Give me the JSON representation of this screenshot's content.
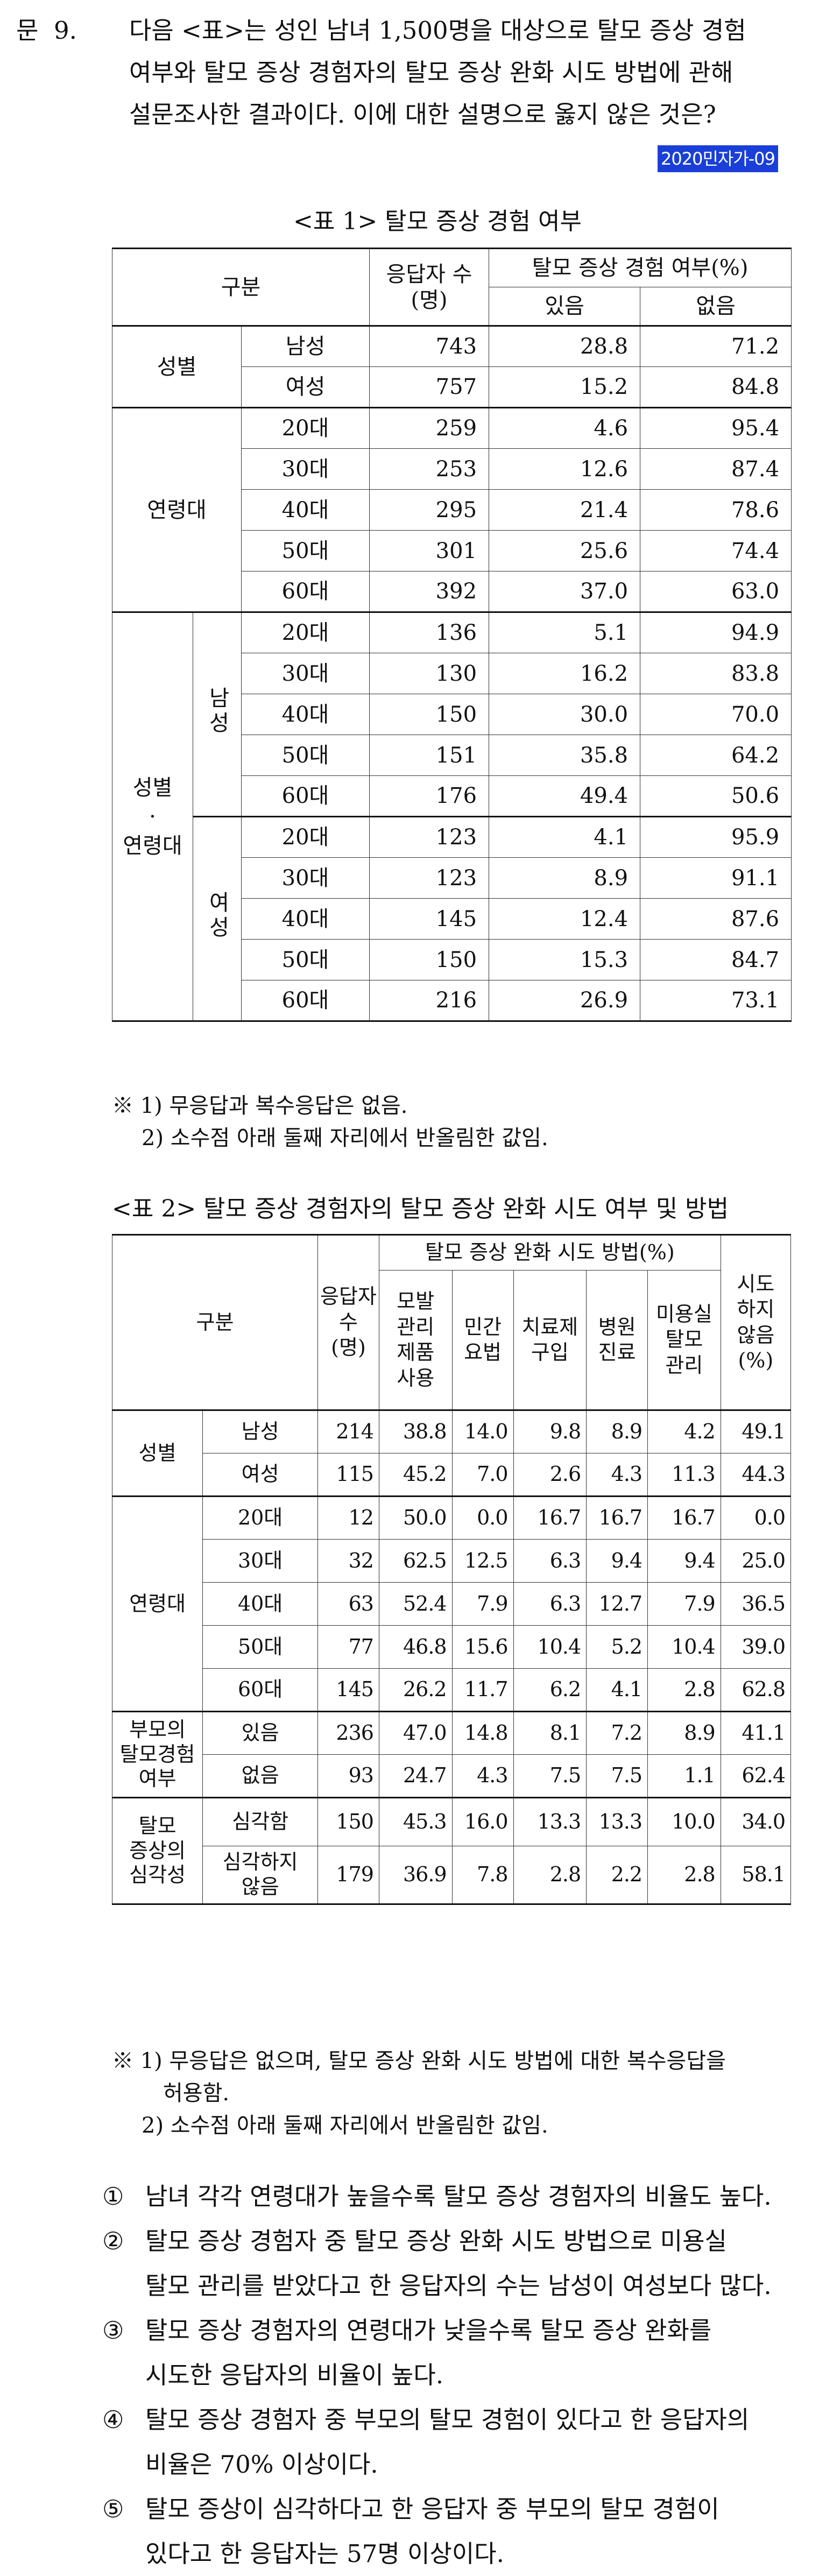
{
  "question": {
    "number": "문  9.",
    "lines": [
      "다음 <표>는 성인 남녀 1,500명을 대상으로 탈모 증상 경험",
      "여부와 탈모 증상 경험자의 탈모 증상 완화 시도 방법에 관해",
      "설문조사한 결과이다. 이에 대한 설명으로 옳지 않은 것은?"
    ],
    "source_tag": "2020민자가-09"
  },
  "table1": {
    "caption": "<표 1> 탈모 증상 경험 여부",
    "header": {
      "category": "구분",
      "respondents": "응답자 수\n(명)",
      "experience": "탈모 증상 경험 여부(%)",
      "yes": "있음",
      "no": "없음"
    },
    "groups": {
      "gender": "성별",
      "age": "연령대",
      "gender_age": "성별\n·\n연령대",
      "male": "남성",
      "female": "여성"
    },
    "rows_gender": [
      {
        "label": "남성",
        "n": "743",
        "yes": "28.8",
        "no": "71.2"
      },
      {
        "label": "여성",
        "n": "757",
        "yes": "15.2",
        "no": "84.8"
      }
    ],
    "rows_age": [
      {
        "label": "20대",
        "n": "259",
        "yes": "4.6",
        "no": "95.4"
      },
      {
        "label": "30대",
        "n": "253",
        "yes": "12.6",
        "no": "87.4"
      },
      {
        "label": "40대",
        "n": "295",
        "yes": "21.4",
        "no": "78.6"
      },
      {
        "label": "50대",
        "n": "301",
        "yes": "25.6",
        "no": "74.4"
      },
      {
        "label": "60대",
        "n": "392",
        "yes": "37.0",
        "no": "63.0"
      }
    ],
    "rows_male": [
      {
        "label": "20대",
        "n": "136",
        "yes": "5.1",
        "no": "94.9"
      },
      {
        "label": "30대",
        "n": "130",
        "yes": "16.2",
        "no": "83.8"
      },
      {
        "label": "40대",
        "n": "150",
        "yes": "30.0",
        "no": "70.0"
      },
      {
        "label": "50대",
        "n": "151",
        "yes": "35.8",
        "no": "64.2"
      },
      {
        "label": "60대",
        "n": "176",
        "yes": "49.4",
        "no": "50.6"
      }
    ],
    "rows_female": [
      {
        "label": "20대",
        "n": "123",
        "yes": "4.1",
        "no": "95.9"
      },
      {
        "label": "30대",
        "n": "123",
        "yes": "8.9",
        "no": "91.1"
      },
      {
        "label": "40대",
        "n": "145",
        "yes": "12.4",
        "no": "87.6"
      },
      {
        "label": "50대",
        "n": "150",
        "yes": "15.3",
        "no": "84.7"
      },
      {
        "label": "60대",
        "n": "216",
        "yes": "26.9",
        "no": "73.1"
      }
    ],
    "notes": [
      "※ 1) 무응답과 복수응답은 없음.",
      "2) 소수점 아래 둘째 자리에서 반올림한 값임."
    ]
  },
  "table2": {
    "caption": "<표 2> 탈모 증상 경험자의 탈모 증상 완화 시도 여부 및 방법",
    "header": {
      "category": "구분",
      "respondents": "응답자\n수\n(명)",
      "methods": "탈모 증상 완화 시도 방법(%)",
      "m1": "모발\n관리\n제품\n사용",
      "m2": "민간\n요법",
      "m3": "치료제\n구입",
      "m4": "병원\n진료",
      "m5": "미용실\n탈모\n관리",
      "none": "시도\n하지\n않음\n(%)"
    },
    "groups": {
      "gender": "성별",
      "age": "연령대",
      "parent": "부모의\n탈모경험\n여부",
      "severity": "탈모\n증상의\n심각성"
    },
    "rows_gender": [
      {
        "label": "남성",
        "n": "214",
        "v": [
          "38.8",
          "14.0",
          "9.8",
          "8.9",
          "4.2",
          "49.1"
        ]
      },
      {
        "label": "여성",
        "n": "115",
        "v": [
          "45.2",
          "7.0",
          "2.6",
          "4.3",
          "11.3",
          "44.3"
        ]
      }
    ],
    "rows_age": [
      {
        "label": "20대",
        "n": "12",
        "v": [
          "50.0",
          "0.0",
          "16.7",
          "16.7",
          "16.7",
          "0.0"
        ]
      },
      {
        "label": "30대",
        "n": "32",
        "v": [
          "62.5",
          "12.5",
          "6.3",
          "9.4",
          "9.4",
          "25.0"
        ]
      },
      {
        "label": "40대",
        "n": "63",
        "v": [
          "52.4",
          "7.9",
          "6.3",
          "12.7",
          "7.9",
          "36.5"
        ]
      },
      {
        "label": "50대",
        "n": "77",
        "v": [
          "46.8",
          "15.6",
          "10.4",
          "5.2",
          "10.4",
          "39.0"
        ]
      },
      {
        "label": "60대",
        "n": "145",
        "v": [
          "26.2",
          "11.7",
          "6.2",
          "4.1",
          "2.8",
          "62.8"
        ]
      }
    ],
    "rows_parent": [
      {
        "label": "있음",
        "n": "236",
        "v": [
          "47.0",
          "14.8",
          "8.1",
          "7.2",
          "8.9",
          "41.1"
        ]
      },
      {
        "label": "없음",
        "n": "93",
        "v": [
          "24.7",
          "4.3",
          "7.5",
          "7.5",
          "1.1",
          "62.4"
        ]
      }
    ],
    "rows_severity": [
      {
        "label": "심각함",
        "n": "150",
        "v": [
          "45.3",
          "16.0",
          "13.3",
          "13.3",
          "10.0",
          "34.0"
        ]
      },
      {
        "label": "심각하지\n않음",
        "n": "179",
        "v": [
          "36.9",
          "7.8",
          "2.8",
          "2.2",
          "2.8",
          "58.1"
        ]
      }
    ],
    "notes": [
      "※ 1) 무응답은 없으며, 탈모 증상 완화 시도 방법에 대한 복수응답을",
      "허용함.",
      "2) 소수점 아래 둘째 자리에서 반올림한 값임."
    ]
  },
  "choices": [
    {
      "mark": "①",
      "lines": [
        "남녀 각각 연령대가 높을수록 탈모 증상 경험자의 비율도 높다."
      ]
    },
    {
      "mark": "②",
      "lines": [
        "탈모 증상 경험자 중 탈모 증상 완화 시도 방법으로 미용실",
        "탈모 관리를 받았다고 한 응답자의 수는 남성이 여성보다 많다."
      ]
    },
    {
      "mark": "③",
      "lines": [
        "탈모 증상 경험자의 연령대가 낮을수록 탈모 증상 완화를",
        "시도한 응답자의 비율이 높다."
      ]
    },
    {
      "mark": "④",
      "lines": [
        "탈모 증상 경험자 중 부모의 탈모 경험이 있다고 한 응답자의",
        "비율은 70% 이상이다."
      ]
    },
    {
      "mark": "⑤",
      "lines": [
        "탈모 증상이 심각하다고 한 응답자 중 부모의 탈모 경험이",
        "있다고 한 응답자는 57명 이상이다."
      ]
    }
  ]
}
